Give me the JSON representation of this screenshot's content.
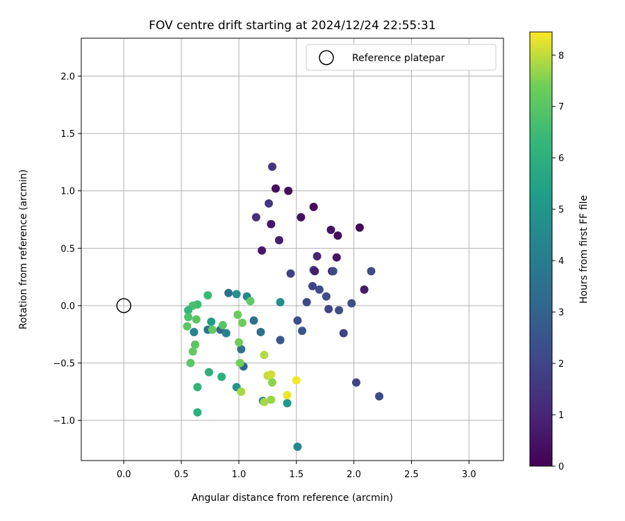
{
  "chart_data": {
    "type": "scatter",
    "title": "FOV centre drift starting at 2024/12/24 22:55:31",
    "xlabel": "Angular distance from reference (arcmin)",
    "ylabel": "Rotation from reference (arcmin)",
    "xlim": [
      -0.37,
      3.3
    ],
    "ylim": [
      -1.35,
      2.33
    ],
    "xticks": [
      0.0,
      0.5,
      1.0,
      1.5,
      2.0,
      2.5,
      3.0
    ],
    "yticks": [
      -1.0,
      -0.5,
      0.0,
      0.5,
      1.0,
      1.5,
      2.0
    ],
    "xtick_labels": [
      "0.0",
      "0.5",
      "1.0",
      "1.5",
      "2.0",
      "2.5",
      "3.0"
    ],
    "ytick_labels": [
      "−1.0",
      "−0.5",
      "0.0",
      "0.5",
      "1.0",
      "1.5",
      "2.0"
    ],
    "grid": true,
    "legend_position": "top-right",
    "reference": {
      "label": "Reference platepar",
      "x": 0.0,
      "y": 0.0
    },
    "colorbar": {
      "label": "Hours from first FF file",
      "range": [
        0,
        8.45
      ],
      "ticks": [
        0,
        1,
        2,
        3,
        4,
        5,
        6,
        7,
        8
      ],
      "colormap": "viridis"
    },
    "points": [
      {
        "x": 1.29,
        "y": 1.21,
        "h": 1.4
      },
      {
        "x": 1.32,
        "y": 1.02,
        "h": 0.3
      },
      {
        "x": 1.43,
        "y": 1.0,
        "h": 0.3
      },
      {
        "x": 1.26,
        "y": 0.89,
        "h": 1.5
      },
      {
        "x": 1.65,
        "y": 0.86,
        "h": 0.2
      },
      {
        "x": 1.15,
        "y": 0.77,
        "h": 1.3
      },
      {
        "x": 1.54,
        "y": 0.77,
        "h": 0.4
      },
      {
        "x": 1.28,
        "y": 0.71,
        "h": 0.5
      },
      {
        "x": 2.05,
        "y": 0.68,
        "h": 0.1
      },
      {
        "x": 1.8,
        "y": 0.66,
        "h": 0.5
      },
      {
        "x": 1.86,
        "y": 0.61,
        "h": 0.3
      },
      {
        "x": 1.35,
        "y": 0.57,
        "h": 0.8
      },
      {
        "x": 1.2,
        "y": 0.48,
        "h": 0.6
      },
      {
        "x": 1.68,
        "y": 0.43,
        "h": 1.0
      },
      {
        "x": 1.85,
        "y": 0.42,
        "h": 0.5
      },
      {
        "x": 1.45,
        "y": 0.28,
        "h": 1.9
      },
      {
        "x": 1.65,
        "y": 0.31,
        "h": 1.8
      },
      {
        "x": 1.66,
        "y": 0.3,
        "h": 0.8
      },
      {
        "x": 1.81,
        "y": 0.3,
        "h": 0.3
      },
      {
        "x": 1.82,
        "y": 0.3,
        "h": 2.2
      },
      {
        "x": 2.15,
        "y": 0.3,
        "h": 2.2
      },
      {
        "x": 2.09,
        "y": 0.14,
        "h": 0.7
      },
      {
        "x": 1.64,
        "y": 0.17,
        "h": 2.0
      },
      {
        "x": 1.7,
        "y": 0.14,
        "h": 2.2
      },
      {
        "x": 1.76,
        "y": 0.08,
        "h": 2.3
      },
      {
        "x": 1.59,
        "y": 0.03,
        "h": 2.1
      },
      {
        "x": 1.98,
        "y": 0.02,
        "h": 2.3
      },
      {
        "x": 1.78,
        "y": -0.03,
        "h": 2.0
      },
      {
        "x": 1.87,
        "y": -0.04,
        "h": 2.3
      },
      {
        "x": 1.51,
        "y": -0.13,
        "h": 2.3
      },
      {
        "x": 1.55,
        "y": -0.22,
        "h": 2.5
      },
      {
        "x": 1.91,
        "y": -0.24,
        "h": 1.9
      },
      {
        "x": 1.36,
        "y": -0.3,
        "h": 2.6
      },
      {
        "x": 2.02,
        "y": -0.67,
        "h": 2.0
      },
      {
        "x": 2.22,
        "y": -0.79,
        "h": 2.2
      },
      {
        "x": 0.91,
        "y": 0.11,
        "h": 3.5
      },
      {
        "x": 0.98,
        "y": 0.1,
        "h": 4.8
      },
      {
        "x": 1.07,
        "y": 0.08,
        "h": 4.4
      },
      {
        "x": 1.36,
        "y": 0.03,
        "h": 4.7
      },
      {
        "x": 1.13,
        "y": -0.13,
        "h": 3.4
      },
      {
        "x": 1.19,
        "y": -0.23,
        "h": 3.5
      },
      {
        "x": 0.76,
        "y": -0.14,
        "h": 5.2
      },
      {
        "x": 0.73,
        "y": -0.21,
        "h": 3.6
      },
      {
        "x": 0.84,
        "y": -0.21,
        "h": 3.3
      },
      {
        "x": 0.89,
        "y": -0.24,
        "h": 4.3
      },
      {
        "x": 1.02,
        "y": -0.38,
        "h": 3.6
      },
      {
        "x": 1.04,
        "y": -0.53,
        "h": 3.0
      },
      {
        "x": 0.61,
        "y": -0.23,
        "h": 4.3
      },
      {
        "x": 0.98,
        "y": -0.71,
        "h": 4.9
      },
      {
        "x": 1.21,
        "y": -0.83,
        "h": 4.1
      },
      {
        "x": 1.42,
        "y": -0.85,
        "h": 5.0
      },
      {
        "x": 1.51,
        "y": -1.23,
        "h": 4.5
      },
      {
        "x": 0.73,
        "y": 0.09,
        "h": 6.4
      },
      {
        "x": 0.64,
        "y": 0.01,
        "h": 6.5
      },
      {
        "x": 0.6,
        "y": 0.0,
        "h": 6.7
      },
      {
        "x": 0.56,
        "y": -0.04,
        "h": 6.3
      },
      {
        "x": 0.56,
        "y": -0.1,
        "h": 6.8
      },
      {
        "x": 0.63,
        "y": -0.12,
        "h": 7.0
      },
      {
        "x": 0.55,
        "y": -0.18,
        "h": 7.0
      },
      {
        "x": 0.77,
        "y": -0.21,
        "h": 7.2
      },
      {
        "x": 0.86,
        "y": -0.17,
        "h": 7.0
      },
      {
        "x": 0.62,
        "y": -0.34,
        "h": 7.0
      },
      {
        "x": 0.6,
        "y": -0.4,
        "h": 7.2
      },
      {
        "x": 0.58,
        "y": -0.5,
        "h": 7.0
      },
      {
        "x": 0.74,
        "y": -0.58,
        "h": 6.0
      },
      {
        "x": 0.85,
        "y": -0.62,
        "h": 6.0
      },
      {
        "x": 0.64,
        "y": -0.71,
        "h": 6.2
      },
      {
        "x": 0.64,
        "y": -0.93,
        "h": 6.0
      },
      {
        "x": 0.99,
        "y": -0.08,
        "h": 7.3
      },
      {
        "x": 1.03,
        "y": -0.15,
        "h": 7.3
      },
      {
        "x": 1.1,
        "y": 0.04,
        "h": 7.1
      },
      {
        "x": 1.0,
        "y": -0.32,
        "h": 7.4
      },
      {
        "x": 1.01,
        "y": -0.5,
        "h": 7.4
      },
      {
        "x": 1.02,
        "y": -0.75,
        "h": 7.8
      },
      {
        "x": 1.22,
        "y": -0.43,
        "h": 7.9
      },
      {
        "x": 1.25,
        "y": -0.61,
        "h": 8.0
      },
      {
        "x": 1.28,
        "y": -0.6,
        "h": 8.1
      },
      {
        "x": 1.29,
        "y": -0.67,
        "h": 7.6
      },
      {
        "x": 1.28,
        "y": -0.82,
        "h": 7.7
      },
      {
        "x": 1.22,
        "y": -0.84,
        "h": 7.8
      },
      {
        "x": 1.42,
        "y": -0.78,
        "h": 8.3
      },
      {
        "x": 1.5,
        "y": -0.65,
        "h": 8.4
      }
    ]
  }
}
